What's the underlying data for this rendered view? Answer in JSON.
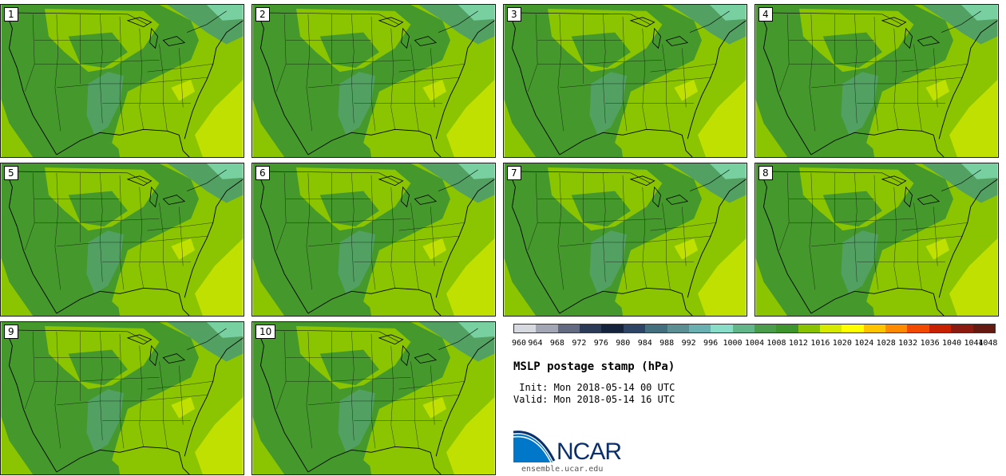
{
  "panels": [
    {
      "label": "1"
    },
    {
      "label": "2"
    },
    {
      "label": "3"
    },
    {
      "label": "4"
    },
    {
      "label": "5"
    },
    {
      "label": "6"
    },
    {
      "label": "7"
    },
    {
      "label": "8"
    },
    {
      "label": "9"
    },
    {
      "label": "10"
    }
  ],
  "colorbar": {
    "colors": [
      "#d6d9e0",
      "#a3a7b5",
      "#626b82",
      "#2c3b57",
      "#16233d",
      "#2d4466",
      "#436f7e",
      "#5c8f93",
      "#6ab0b2",
      "#88dcc8",
      "#62b689",
      "#4c9d4b",
      "#3f952d",
      "#89c200",
      "#d6ea00",
      "#ffff00",
      "#ffc400",
      "#ff8c00",
      "#f24a00",
      "#c72100",
      "#8b1a10",
      "#641a10"
    ],
    "ticks": [
      "960",
      "964",
      "968",
      "972",
      "976",
      "980",
      "984",
      "988",
      "992",
      "996",
      "1000",
      "1004",
      "1008",
      "1012",
      "1016",
      "1020",
      "1024",
      "1028",
      "1032",
      "1036",
      "1040",
      "1044",
      "1048"
    ]
  },
  "title": "MSLP postage stamp (hPa)",
  "init_line": " Init: Mon 2018-05-14 00 UTC",
  "valid_line": "Valid: Mon 2018-05-14 16 UTC",
  "logo": {
    "text": "NCAR",
    "url": "ensemble.ucar.edu",
    "primary_color": "#0a2f6b",
    "accent_color": "#0077c8"
  },
  "map_colors": {
    "light_green": "#8bc400",
    "mid_green": "#44982c",
    "dark_green": "#2d7f26",
    "teal": "#52a062",
    "yellow": "#bfe000",
    "light_teal": "#78d0a0"
  }
}
